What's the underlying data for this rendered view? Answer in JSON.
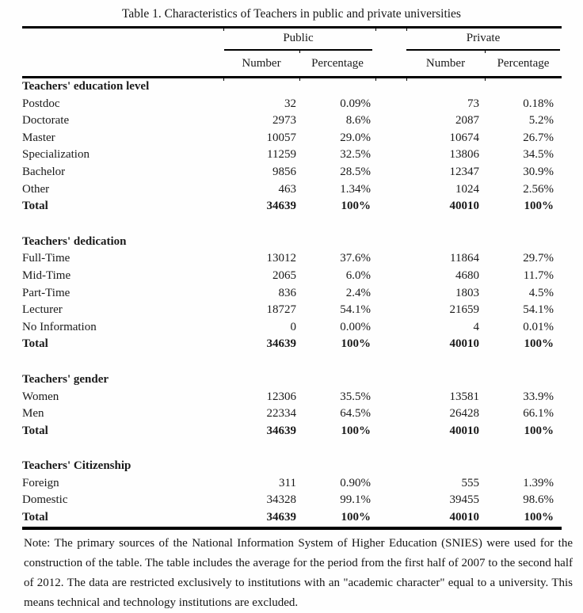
{
  "title": "Table 1. Characteristics of Teachers in public and private universities",
  "header": {
    "public_label": "Public",
    "private_label": "Private",
    "col_number": "Number",
    "col_percentage": "Percentage"
  },
  "sections": [
    {
      "header": "Teachers' education level",
      "rows": [
        {
          "label": "Postdoc",
          "public_number": "32",
          "public_percentage": "0.09%",
          "private_number": "73",
          "private_percentage": "0.18%",
          "bold": false
        },
        {
          "label": "Doctorate",
          "public_number": "2973",
          "public_percentage": "8.6%",
          "private_number": "2087",
          "private_percentage": "5.2%",
          "bold": false
        },
        {
          "label": "Master",
          "public_number": "10057",
          "public_percentage": "29.0%",
          "private_number": "10674",
          "private_percentage": "26.7%",
          "bold": false
        },
        {
          "label": "Specialization",
          "public_number": "11259",
          "public_percentage": "32.5%",
          "private_number": "13806",
          "private_percentage": "34.5%",
          "bold": false
        },
        {
          "label": "Bachelor",
          "public_number": "9856",
          "public_percentage": "28.5%",
          "private_number": "12347",
          "private_percentage": "30.9%",
          "bold": false
        },
        {
          "label": "Other",
          "public_number": "463",
          "public_percentage": "1.34%",
          "private_number": "1024",
          "private_percentage": "2.56%",
          "bold": false
        },
        {
          "label": "Total",
          "public_number": "34639",
          "public_percentage": "100%",
          "private_number": "40010",
          "private_percentage": "100%",
          "bold": true
        }
      ]
    },
    {
      "header": "Teachers' dedication",
      "rows": [
        {
          "label": "Full-Time",
          "public_number": "13012",
          "public_percentage": "37.6%",
          "private_number": "11864",
          "private_percentage": "29.7%",
          "bold": false
        },
        {
          "label": "Mid-Time",
          "public_number": "2065",
          "public_percentage": "6.0%",
          "private_number": "4680",
          "private_percentage": "11.7%",
          "bold": false
        },
        {
          "label": "Part-Time",
          "public_number": "836",
          "public_percentage": "2.4%",
          "private_number": "1803",
          "private_percentage": "4.5%",
          "bold": false
        },
        {
          "label": "Lecturer",
          "public_number": "18727",
          "public_percentage": "54.1%",
          "private_number": "21659",
          "private_percentage": "54.1%",
          "bold": false
        },
        {
          "label": "No Information",
          "public_number": "0",
          "public_percentage": "0.00%",
          "private_number": "4",
          "private_percentage": "0.01%",
          "bold": false
        },
        {
          "label": "Total",
          "public_number": "34639",
          "public_percentage": "100%",
          "private_number": "40010",
          "private_percentage": "100%",
          "bold": true
        }
      ]
    },
    {
      "header": "Teachers' gender",
      "rows": [
        {
          "label": "Women",
          "public_number": "12306",
          "public_percentage": "35.5%",
          "private_number": "13581",
          "private_percentage": "33.9%",
          "bold": false
        },
        {
          "label": "Men",
          "public_number": "22334",
          "public_percentage": "64.5%",
          "private_number": "26428",
          "private_percentage": "66.1%",
          "bold": false
        },
        {
          "label": "Total",
          "public_number": "34639",
          "public_percentage": "100%",
          "private_number": "40010",
          "private_percentage": "100%",
          "bold": true
        }
      ]
    },
    {
      "header": "Teachers' Citizenship",
      "rows": [
        {
          "label": "Foreign",
          "public_number": "311",
          "public_percentage": "0.90%",
          "private_number": "555",
          "private_percentage": "1.39%",
          "bold": false
        },
        {
          "label": "Domestic",
          "public_number": "34328",
          "public_percentage": "99.1%",
          "private_number": "39455",
          "private_percentage": "98.6%",
          "bold": false
        },
        {
          "label": "Total",
          "public_number": "34639",
          "public_percentage": "100%",
          "private_number": "40010",
          "private_percentage": "100%",
          "bold": true
        }
      ]
    }
  ],
  "note": "Note: The primary sources of the National Information System of Higher Education (SNIES) were used for the construction of the table. The table includes the average for the period from the first half of 2007 to the second half of 2012. The data are restricted exclusively to institutions with an \"academic character\" equal to a university.  This means technical and technology institutions are excluded.",
  "colors": {
    "text": "#1a1a1a",
    "rule": "#000000",
    "background": "#ffffff"
  }
}
